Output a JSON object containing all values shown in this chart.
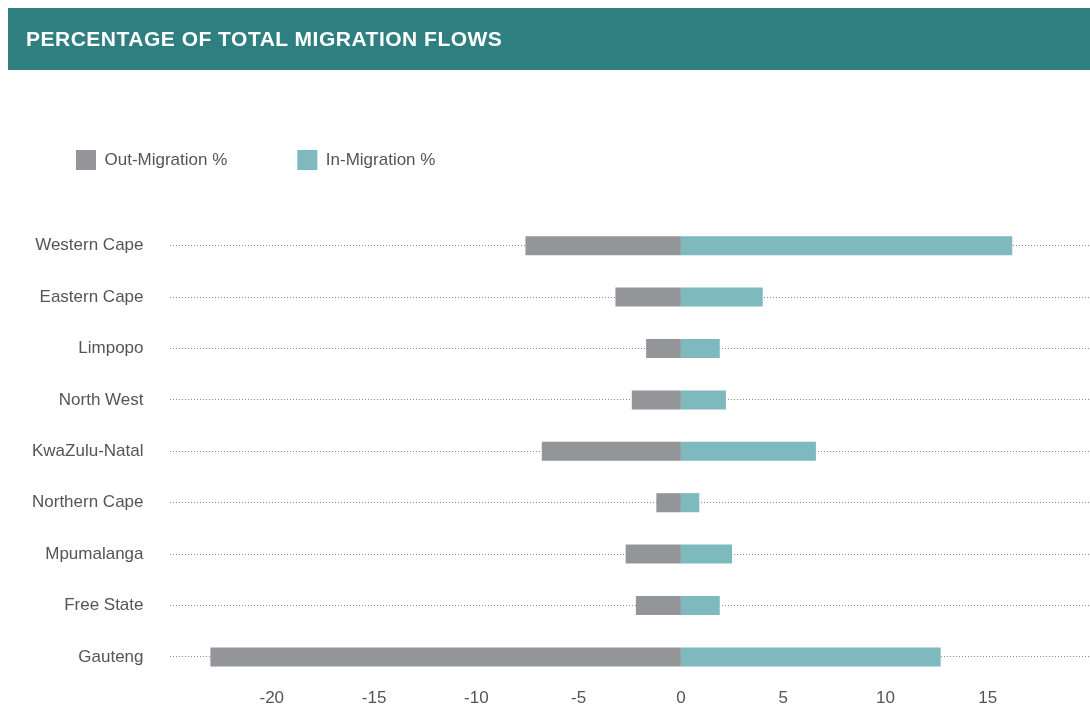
{
  "chart_data": {
    "type": "bar",
    "orientation": "horizontal",
    "stacked": true,
    "title": "PERCENTAGE OF TOTAL MIGRATION FLOWS",
    "categories": [
      "Western Cape",
      "Eastern Cape",
      "Limpopo",
      "North West",
      "KwaZulu-Natal",
      "Northern Cape",
      "Mpumalanga",
      "Free State",
      "Gauteng"
    ],
    "series": [
      {
        "name": "Out-Migration %",
        "color": "#939598",
        "values": [
          -7.6,
          -3.2,
          -1.7,
          -2.4,
          -6.8,
          -1.2,
          -2.7,
          -2.2,
          -23.0
        ]
      },
      {
        "name": "In-Migration %",
        "color": "#7db9bd",
        "values": [
          16.2,
          4.0,
          1.9,
          2.2,
          6.6,
          0.9,
          2.5,
          1.9,
          12.7
        ]
      }
    ],
    "xlim": [
      -25,
      20
    ],
    "xticks": [
      -20,
      -15,
      -10,
      -5,
      0,
      5,
      10,
      15
    ],
    "grid": "y",
    "legend": "top left"
  }
}
